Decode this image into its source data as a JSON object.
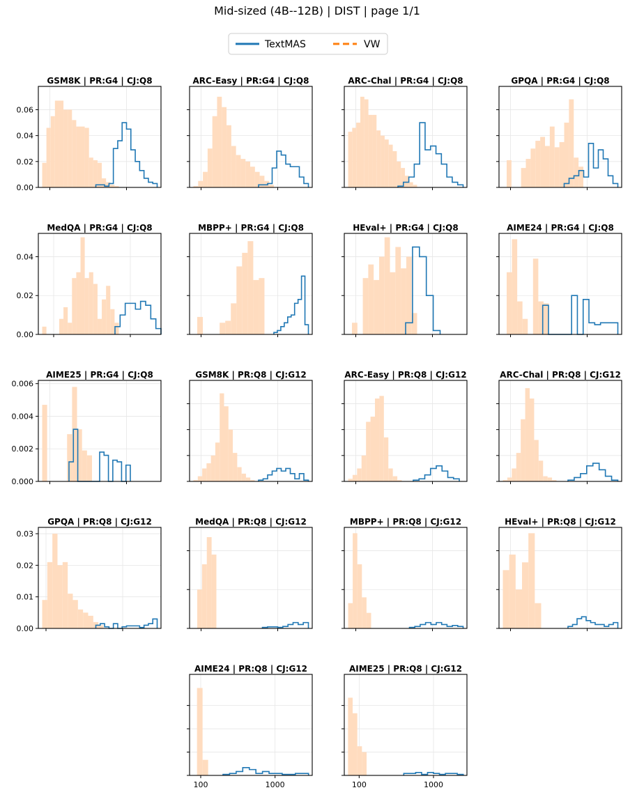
{
  "figure": {
    "title": "Mid-sized (4B--12B) | DIST | page 1/1",
    "legend": [
      {
        "label": "TextMAS",
        "color": "#1f77b4",
        "style": "solid"
      },
      {
        "label": "VW",
        "color": "#ff7f0e",
        "style": "dashed"
      }
    ],
    "x_axis_scale": "log",
    "x_tick_labels": [
      "100",
      "1000"
    ],
    "fill_color": "#ffdcbf",
    "line_color": "#1f77b4"
  },
  "chart_data": [
    {
      "type": "histogram",
      "title": "GSM8K | PR:G4 | CJ:Q8",
      "ylim": [
        0,
        0.078
      ],
      "yticks": [
        "0.00",
        "0.02",
        "0.04",
        "0.06"
      ],
      "xlim_log": [
        1.85,
        3.45
      ],
      "vw_range_log": [
        1.9,
        2.9
      ],
      "vw_values": [
        0.019,
        0.046,
        0.055,
        0.067,
        0.067,
        0.06,
        0.06,
        0.052,
        0.047,
        0.047,
        0.046,
        0.023,
        0.021,
        0.019,
        0.007,
        0.004,
        0.002,
        0.001
      ],
      "textmas_range_log": [
        2.6,
        3.4
      ],
      "textmas_values": [
        0.002,
        0.002,
        0.001,
        0.003,
        0.03,
        0.036,
        0.05,
        0.045,
        0.029,
        0.02,
        0.013,
        0.007,
        0.004,
        0.003
      ]
    },
    {
      "type": "histogram",
      "title": "ARC-Easy | PR:G4 | CJ:Q8",
      "ylim": [
        0,
        0.078
      ],
      "yticks": [
        "",
        "",
        "",
        ""
      ],
      "xlim_log": [
        1.85,
        3.45
      ],
      "vw_range_log": [
        1.9,
        2.95
      ],
      "vw_values": [
        0.001,
        0.005,
        0.012,
        0.03,
        0.055,
        0.07,
        0.062,
        0.048,
        0.032,
        0.025,
        0.022,
        0.02,
        0.016,
        0.012,
        0.009,
        0.005,
        0.002
      ],
      "textmas_range_log": [
        2.75,
        3.4
      ],
      "textmas_values": [
        0.002,
        0.002,
        0.003,
        0.015,
        0.028,
        0.025,
        0.018,
        0.016,
        0.016,
        0.008,
        0.003
      ]
    },
    {
      "type": "histogram",
      "title": "ARC-Chal | PR:G4 | CJ:Q8",
      "ylim": [
        0,
        0.078
      ],
      "yticks": [
        "",
        "",
        "",
        ""
      ],
      "xlim_log": [
        1.85,
        3.45
      ],
      "vw_range_log": [
        1.9,
        2.8
      ],
      "vw_values": [
        0.043,
        0.046,
        0.05,
        0.07,
        0.068,
        0.056,
        0.056,
        0.044,
        0.04,
        0.037,
        0.033,
        0.028,
        0.02,
        0.015,
        0.009,
        0.004,
        0.002
      ],
      "textmas_range_log": [
        2.55,
        3.4
      ],
      "textmas_values": [
        0.001,
        0.004,
        0.008,
        0.018,
        0.05,
        0.029,
        0.032,
        0.026,
        0.018,
        0.008,
        0.004,
        0.002
      ]
    },
    {
      "type": "histogram",
      "title": "GPQA | PR:G4 | CJ:Q8",
      "ylim": [
        0,
        0.078
      ],
      "yticks": [
        "",
        "",
        "",
        ""
      ],
      "xlim_log": [
        1.85,
        3.45
      ],
      "vw_range_log": [
        1.95,
        2.95
      ],
      "vw_values": [
        0.021,
        0.0,
        0.0,
        0.015,
        0.022,
        0.03,
        0.036,
        0.039,
        0.032,
        0.047,
        0.031,
        0.035,
        0.05,
        0.068,
        0.023,
        0.016
      ],
      "textmas_range_log": [
        2.7,
        3.4
      ],
      "textmas_values": [
        0.003,
        0.007,
        0.009,
        0.013,
        0.008,
        0.034,
        0.015,
        0.029,
        0.022,
        0.009,
        0.003
      ]
    },
    {
      "type": "histogram",
      "title": "MedQA | PR:G4 | CJ:Q8",
      "ylim": [
        0,
        0.052
      ],
      "yticks": [
        "0.00",
        "0.02",
        "0.04"
      ],
      "xlim_log": [
        1.8,
        3.4
      ],
      "vw_range_log": [
        1.85,
        2.85
      ],
      "vw_values": [
        0.004,
        0.0,
        0.0,
        0.0,
        0.008,
        0.014,
        0.006,
        0.029,
        0.032,
        0.05,
        0.029,
        0.032,
        0.026,
        0.008,
        0.018,
        0.025,
        0.013,
        0.006
      ],
      "textmas_range_log": [
        2.8,
        3.4
      ],
      "textmas_values": [
        0.004,
        0.01,
        0.016,
        0.016,
        0.013,
        0.017,
        0.015,
        0.008,
        0.003
      ]
    },
    {
      "type": "histogram",
      "title": "MBPP+ | PR:G4 | CJ:Q8",
      "ylim": [
        0,
        0.052
      ],
      "yticks": [
        "",
        "",
        ""
      ],
      "xlim_log": [
        1.85,
        3.45
      ],
      "vw_range_log": [
        1.95,
        2.9
      ],
      "vw_values": [
        0.009,
        0.0,
        0.0,
        0.0,
        0.006,
        0.007,
        0.016,
        0.035,
        0.042,
        0.048,
        0.028,
        0.029,
        0.0
      ],
      "textmas_range_log": [
        2.95,
        3.4
      ],
      "textmas_values": [
        0.001,
        0.002,
        0.004,
        0.006,
        0.009,
        0.01,
        0.016,
        0.018,
        0.03,
        0.005
      ]
    },
    {
      "type": "histogram",
      "title": "HEval+ | PR:G4 | CJ:Q8",
      "ylim": [
        0,
        0.052
      ],
      "yticks": [
        "",
        "",
        ""
      ],
      "xlim_log": [
        1.85,
        3.45
      ],
      "vw_range_log": [
        1.95,
        2.8
      ],
      "vw_values": [
        0.006,
        0.0,
        0.029,
        0.036,
        0.028,
        0.04,
        0.05,
        0.032,
        0.045,
        0.034,
        0.04,
        0.011
      ],
      "textmas_range_log": [
        2.65,
        3.1
      ],
      "textmas_values": [
        0.006,
        0.045,
        0.04,
        0.02,
        0.002
      ]
    },
    {
      "type": "histogram",
      "title": "AIME24 | PR:G4 | CJ:Q8",
      "ylim": [
        0,
        0.052
      ],
      "yticks": [
        "",
        "",
        ""
      ],
      "xlim_log": [
        1.85,
        3.45
      ],
      "vw_range_log": [
        1.95,
        2.5
      ],
      "vw_values": [
        0.032,
        0.049,
        0.017,
        0.008,
        0.0,
        0.039,
        0.017,
        0.016
      ],
      "textmas_range_log": [
        2.42,
        3.4
      ],
      "textmas_values": [
        0.015,
        0.0,
        0.0,
        0.0,
        0.0,
        0.02,
        0.0,
        0.018,
        0.006,
        0.005,
        0.006,
        0.006,
        0.006
      ]
    },
    {
      "type": "histogram",
      "title": "AIME25 | PR:G4 | CJ:Q8",
      "ylim": [
        0,
        0.0062
      ],
      "yticks": [
        "0.000",
        "0.002",
        "0.004",
        "0.006"
      ],
      "xlim_log": [
        1.85,
        3.45
      ],
      "vw_range_log": [
        1.9,
        2.55
      ],
      "vw_values": [
        0.0047,
        0.0,
        0.0,
        0.0,
        0.0,
        0.0029,
        0.0058,
        0.0032,
        0.0019,
        0.0016
      ],
      "textmas_range_log": [
        2.25,
        3.05
      ],
      "textmas_values": [
        0.0012,
        0.0032,
        0.0,
        0.0,
        0.0,
        0.0,
        0.0,
        0.0018,
        0.0016,
        0.0,
        0.0013,
        0.0012,
        0.0,
        0.001
      ]
    },
    {
      "type": "histogram",
      "title": "GSM8K | PR:Q8 | CJ:G12",
      "ylim": [
        0,
        0.078
      ],
      "yticks": [
        "",
        "",
        "",
        ""
      ],
      "xlim_log": [
        1.85,
        3.45
      ],
      "vw_range_log": [
        1.9,
        2.7
      ],
      "vw_values": [
        0.001,
        0.004,
        0.01,
        0.014,
        0.02,
        0.03,
        0.068,
        0.058,
        0.04,
        0.022,
        0.011,
        0.006,
        0.003,
        0.001
      ],
      "textmas_range_log": [
        2.75,
        3.4
      ],
      "textmas_values": [
        0.001,
        0.002,
        0.005,
        0.008,
        0.01,
        0.008,
        0.01,
        0.006,
        0.002,
        0.006,
        0.001
      ]
    },
    {
      "type": "histogram",
      "title": "ARC-Easy | PR:Q8 | CJ:G12",
      "ylim": [
        0,
        0.078
      ],
      "yticks": [
        "",
        "",
        "",
        ""
      ],
      "xlim_log": [
        1.85,
        3.45
      ],
      "vw_range_log": [
        1.9,
        2.6
      ],
      "vw_values": [
        0.002,
        0.005,
        0.01,
        0.02,
        0.046,
        0.05,
        0.064,
        0.066,
        0.034,
        0.01,
        0.004,
        0.001
      ],
      "textmas_range_log": [
        2.75,
        3.35
      ],
      "textmas_values": [
        0.001,
        0.002,
        0.005,
        0.01,
        0.012,
        0.008,
        0.003,
        0.002
      ]
    },
    {
      "type": "histogram",
      "title": "ARC-Chal | PR:Q8 | CJ:G12",
      "ylim": [
        0,
        0.078
      ],
      "yticks": [
        "",
        "",
        "",
        ""
      ],
      "xlim_log": [
        1.85,
        3.45
      ],
      "vw_range_log": [
        1.9,
        2.6
      ],
      "vw_values": [
        0.001,
        0.003,
        0.01,
        0.022,
        0.048,
        0.072,
        0.064,
        0.032,
        0.016,
        0.004,
        0.003,
        0.001
      ],
      "textmas_range_log": [
        2.75,
        3.4
      ],
      "textmas_values": [
        0.001,
        0.003,
        0.006,
        0.012,
        0.014,
        0.009,
        0.004,
        0.001
      ]
    },
    {
      "type": "histogram",
      "title": "GPQA | PR:Q8 | CJ:G12",
      "ylim": [
        0,
        0.032
      ],
      "yticks": [
        "0.00",
        "0.01",
        "0.02",
        "0.03"
      ],
      "xlim_log": [
        1.9,
        3.5
      ],
      "vw_range_log": [
        1.95,
        2.75
      ],
      "vw_values": [
        0.009,
        0.021,
        0.03,
        0.02,
        0.021,
        0.011,
        0.009,
        0.006,
        0.005,
        0.004,
        0.002,
        0.001
      ],
      "textmas_range_log": [
        2.65,
        3.45
      ],
      "textmas_values": [
        0.001,
        0.0015,
        0.0005,
        0.0,
        0.0015,
        0.0,
        0.0005,
        0.0008,
        0.0008,
        0.0008,
        0.0003,
        0.001,
        0.0015,
        0.003
      ]
    },
    {
      "type": "histogram",
      "title": "MedQA | PR:Q8 | CJ:G12",
      "ylim": [
        0,
        0.052
      ],
      "yticks": [
        "",
        "",
        ""
      ],
      "xlim_log": [
        1.85,
        3.45
      ],
      "vw_range_log": [
        1.95,
        2.2
      ],
      "vw_values": [
        0.02,
        0.033,
        0.047,
        0.038
      ],
      "textmas_range_log": [
        2.8,
        3.4
      ],
      "textmas_values": [
        0.0005,
        0.0008,
        0.0008,
        0.0005,
        0.001,
        0.002,
        0.003,
        0.002,
        0.003
      ]
    },
    {
      "type": "histogram",
      "title": "MBPP+ | PR:Q8 | CJ:G12",
      "ylim": [
        0,
        0.052
      ],
      "yticks": [
        "",
        "",
        ""
      ],
      "xlim_log": [
        1.85,
        3.45
      ],
      "vw_range_log": [
        1.9,
        2.2
      ],
      "vw_values": [
        0.013,
        0.049,
        0.033,
        0.016,
        0.008
      ],
      "textmas_range_log": [
        2.7,
        3.4
      ],
      "textmas_values": [
        0.0005,
        0.001,
        0.002,
        0.003,
        0.002,
        0.003,
        0.002,
        0.001,
        0.0015,
        0.001
      ]
    },
    {
      "type": "histogram",
      "title": "HEval+ | PR:Q8 | CJ:G12",
      "ylim": [
        0,
        0.052
      ],
      "yticks": [
        "",
        "",
        ""
      ],
      "xlim_log": [
        1.85,
        3.45
      ],
      "vw_range_log": [
        1.9,
        2.4
      ],
      "vw_values": [
        0.03,
        0.038,
        0.02,
        0.034,
        0.049,
        0.013
      ],
      "textmas_range_log": [
        2.75,
        3.4
      ],
      "textmas_values": [
        0.001,
        0.002,
        0.005,
        0.006,
        0.004,
        0.003,
        0.002,
        0.002,
        0.001,
        0.002,
        0.003
      ]
    },
    {
      "type": "histogram",
      "title": "AIME24 | PR:Q8 | CJ:G12",
      "ylim": [
        0,
        0.052
      ],
      "yticks": [
        "",
        "",
        "",
        ""
      ],
      "xlim_log": [
        1.85,
        3.5
      ],
      "xticks": [
        "100",
        "1000"
      ],
      "vw_range_log": [
        1.95,
        2.1
      ],
      "vw_values": [
        0.045,
        0.008
      ],
      "textmas_range_log": [
        2.3,
        3.45
      ],
      "textmas_values": [
        0.0005,
        0.001,
        0.002,
        0.004,
        0.003,
        0.001,
        0.002,
        0.001,
        0.001,
        0.0005,
        0.0005,
        0.001,
        0.001
      ]
    },
    {
      "type": "histogram",
      "title": "AIME25 | PR:Q8 | CJ:G12",
      "ylim": [
        0,
        0.052
      ],
      "yticks": [
        "",
        "",
        "",
        ""
      ],
      "xlim_log": [
        1.8,
        3.45
      ],
      "xticks": [
        "100",
        "1000"
      ],
      "vw_range_log": [
        1.85,
        2.1
      ],
      "vw_values": [
        0.04,
        0.032,
        0.015,
        0.012
      ],
      "textmas_range_log": [
        2.6,
        3.4
      ],
      "textmas_values": [
        0.001,
        0.001,
        0.0015,
        0.0005,
        0.0015,
        0.001,
        0.0005,
        0.001,
        0.001,
        0.0005
      ]
    }
  ]
}
